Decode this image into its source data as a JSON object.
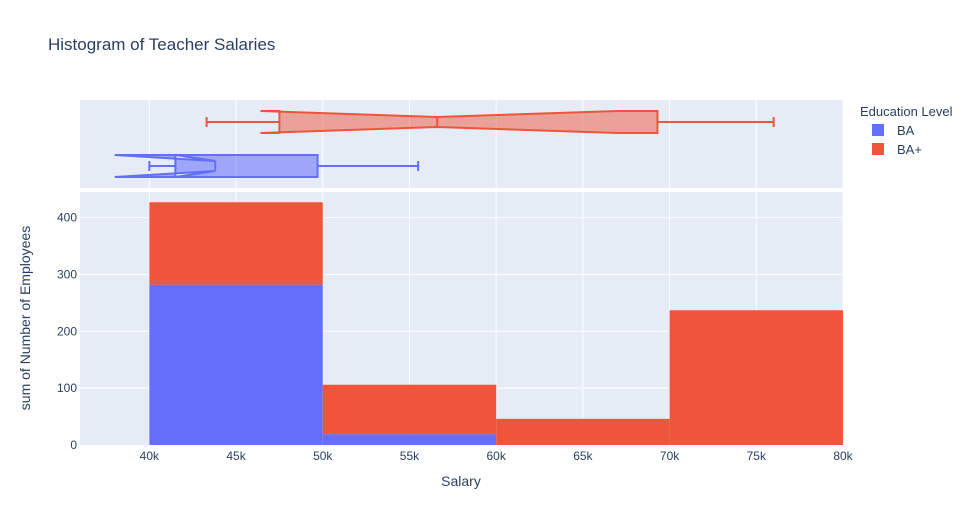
{
  "chart_data": {
    "type": "bar",
    "title": "Histogram of Teacher Salaries",
    "xlabel": "Salary",
    "ylabel": "sum of Number of Employees",
    "xlim": [
      36000,
      80000
    ],
    "ylim": [
      0,
      445
    ],
    "xticks": [
      40000,
      45000,
      50000,
      55000,
      60000,
      65000,
      70000,
      75000,
      80000
    ],
    "xtick_labels": [
      "40k",
      "45k",
      "50k",
      "55k",
      "60k",
      "65k",
      "70k",
      "75k",
      "80k"
    ],
    "yticks": [
      0,
      100,
      200,
      300,
      400
    ],
    "barmode": "stack",
    "bins": [
      {
        "start": 40000,
        "end": 50000
      },
      {
        "start": 50000,
        "end": 60000
      },
      {
        "start": 60000,
        "end": 70000
      },
      {
        "start": 70000,
        "end": 80000
      }
    ],
    "series": [
      {
        "name": "BA",
        "color": "#636efa",
        "values": [
          282,
          19,
          0,
          0
        ]
      },
      {
        "name": "BA+",
        "color": "#ef553b",
        "values": [
          145,
          87,
          46,
          237
        ]
      }
    ],
    "legend": {
      "title": "Education Level",
      "position": "top-right"
    },
    "marginal": {
      "type": "box",
      "notched": true,
      "boxes": [
        {
          "series": "BA",
          "color": "#636efa",
          "min": 40000,
          "q1": 41500,
          "median": 43800,
          "q3": 49700,
          "max": 55500,
          "notch_low": 38000,
          "notch_high": 41500
        },
        {
          "series": "BA+",
          "color": "#ef553b",
          "min": 43300,
          "q1": 47500,
          "median": 56600,
          "q3": 69300,
          "max": 76000,
          "notch_low": 46400,
          "notch_high": 67000
        }
      ]
    }
  }
}
